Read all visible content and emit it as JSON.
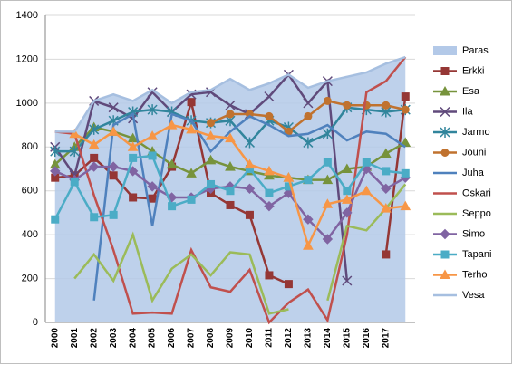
{
  "chart_data": {
    "type": "line",
    "categories": [
      "2000",
      "2001",
      "2002",
      "2003",
      "2004",
      "2005",
      "2006",
      "2007",
      "2008",
      "2009",
      "2010",
      "2011",
      "2012",
      "2013",
      "2014",
      "2015",
      "2016",
      "2017",
      null
    ],
    "ylim": [
      0,
      1400
    ],
    "yticks": [
      0,
      200,
      400,
      600,
      800,
      1000,
      1200,
      1400
    ],
    "grid": true,
    "legend": "right",
    "series": [
      {
        "name": "Paras",
        "color": "#b3c9e8",
        "kind": "area",
        "values": [
          870,
          870,
          1010,
          1040,
          1010,
          1060,
          1000,
          1050,
          1060,
          1110,
          1060,
          1090,
          1130,
          1070,
          1100,
          1120,
          1140,
          1180,
          1210
        ]
      },
      {
        "name": "Erkki",
        "color": "#953735",
        "marker": "square",
        "values": [
          660,
          670,
          750,
          670,
          570,
          565,
          710,
          1005,
          590,
          535,
          490,
          215,
          175,
          null,
          null,
          null,
          null,
          310,
          1030
        ]
      },
      {
        "name": "Esa",
        "color": "#77933c",
        "marker": "triangle",
        "values": [
          720,
          800,
          890,
          870,
          840,
          780,
          720,
          680,
          740,
          710,
          690,
          670,
          660,
          650,
          650,
          700,
          710,
          770,
          820
        ]
      },
      {
        "name": "Ila",
        "color": "#604a7b",
        "marker": "x",
        "values": [
          800,
          670,
          1010,
          980,
          930,
          1050,
          960,
          1040,
          1050,
          990,
          950,
          1030,
          1130,
          1000,
          1100,
          190,
          null,
          null,
          null
        ]
      },
      {
        "name": "Jarmo",
        "color": "#31859c",
        "marker": "star",
        "values": [
          780,
          780,
          880,
          920,
          960,
          970,
          960,
          920,
          910,
          920,
          820,
          920,
          890,
          820,
          860,
          980,
          970,
          960,
          970
        ]
      },
      {
        "name": "Jouni",
        "color": "#c0722f",
        "marker": "circle",
        "values": [
          null,
          null,
          null,
          null,
          null,
          null,
          null,
          null,
          910,
          950,
          950,
          940,
          870,
          940,
          1010,
          990,
          990,
          990,
          970
        ]
      },
      {
        "name": "Juha",
        "color": "#4f81bd",
        "marker": "none",
        "values": [
          null,
          null,
          100,
          900,
          950,
          440,
          950,
          920,
          780,
          870,
          940,
          900,
          850,
          860,
          900,
          830,
          870,
          860,
          800
        ]
      },
      {
        "name": "Oskari",
        "color": "#c0504d",
        "marker": "none",
        "values": [
          870,
          860,
          580,
          330,
          40,
          45,
          40,
          330,
          160,
          140,
          240,
          0,
          90,
          150,
          10,
          400,
          1050,
          1100,
          1210
        ]
      },
      {
        "name": "Seppo",
        "color": "#9bbb59",
        "marker": "none",
        "values": [
          null,
          200,
          310,
          190,
          400,
          100,
          245,
          310,
          215,
          320,
          310,
          40,
          60,
          null,
          100,
          440,
          420,
          520,
          630
        ]
      },
      {
        "name": "Simo",
        "color": "#8064a2",
        "marker": "diamond",
        "values": [
          690,
          650,
          710,
          710,
          690,
          620,
          570,
          570,
          610,
          620,
          610,
          530,
          590,
          470,
          380,
          500,
          700,
          610,
          660
        ]
      },
      {
        "name": "Tapani",
        "color": "#4bacc6",
        "marker": "square",
        "values": [
          470,
          640,
          480,
          490,
          750,
          760,
          530,
          560,
          630,
          600,
          700,
          590,
          620,
          650,
          730,
          600,
          730,
          690,
          680
        ]
      },
      {
        "name": "Terho",
        "color": "#f79646",
        "marker": "triangle",
        "values": [
          null,
          860,
          810,
          870,
          800,
          850,
          900,
          880,
          850,
          840,
          720,
          690,
          660,
          350,
          540,
          560,
          600,
          520,
          530
        ]
      },
      {
        "name": "Vesa",
        "color": "#a6bfe0",
        "marker": "none",
        "values": [
          870,
          870,
          1010,
          1040,
          1010,
          1060,
          1000,
          1050,
          1060,
          1110,
          1060,
          1090,
          1130,
          1070,
          1100,
          1120,
          1140,
          1180,
          1210
        ]
      }
    ]
  }
}
